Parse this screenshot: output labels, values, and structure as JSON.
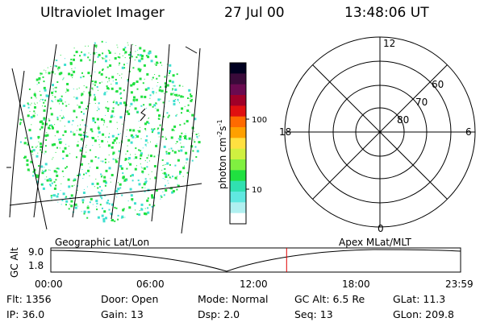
{
  "header": {
    "instrument": "Ultraviolet Imager",
    "date": "27 Jul 00",
    "time": "13:48:06 UT"
  },
  "colorbar": {
    "label": "photon cm",
    "label_sup1": "-2",
    "label_mid": "s",
    "label_sup2": "-1",
    "ticks": [
      {
        "label": "100",
        "value": 100
      },
      {
        "label": "10",
        "value": 10
      }
    ],
    "colors": [
      "#000020",
      "#3a0a3a",
      "#6a0a50",
      "#a00028",
      "#e01010",
      "#ff6a00",
      "#ffa000",
      "#ffe040",
      "#d0f040",
      "#80f040",
      "#20e040",
      "#30e0b0",
      "#60e8e0",
      "#b0f0f0",
      "#ffffff"
    ]
  },
  "polar": {
    "mlt_labels": {
      "top": "12",
      "left": "18",
      "right": "6",
      "bottom": "0"
    },
    "lat_labels": [
      "60",
      "70",
      "80"
    ]
  },
  "timeline": {
    "left_title": "Geographic Lat/Lon",
    "right_title": "Apex MLat/MLT",
    "ylabel": "GC Alt",
    "yticks": [
      "9.0",
      "1.8"
    ],
    "xticks": [
      "00:00",
      "06:00",
      "12:00",
      "18:00",
      "23:59"
    ],
    "marker_time": "13:48",
    "marker_color": "#e00000"
  },
  "info": {
    "row1": {
      "flt": "Flt: 1356",
      "door": "Door: Open",
      "mode": "Mode: Normal",
      "gcalt": "GC Alt: 6.5 Re",
      "glat": "GLat:  11.3"
    },
    "row2": {
      "ip": "IP: 36.0",
      "gain": "Gain: 13",
      "dsp": "Dsp:     2.0",
      "seq": "Seq: 13",
      "glon": "GLon: 209.8"
    }
  },
  "palette": {
    "dot_green": "#20e040",
    "dot_cyan": "#40e0d0"
  }
}
